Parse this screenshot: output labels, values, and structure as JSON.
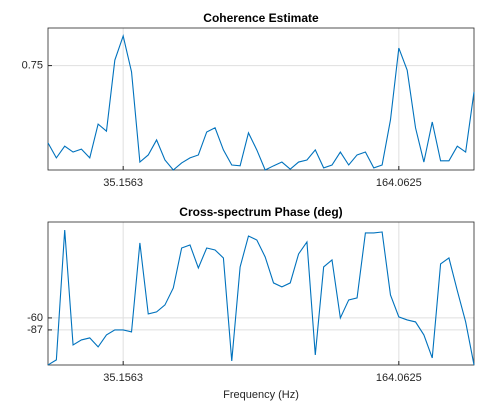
{
  "chart_data": [
    {
      "type": "line",
      "title": "Coherence Estimate",
      "x": [
        0,
        3.90625,
        7.8125,
        11.71875,
        15.625,
        19.53125,
        23.4375,
        27.34375,
        31.25,
        35.15625,
        39.0625,
        42.96875,
        46.875,
        50.78125,
        54.6875,
        58.59375,
        62.5,
        66.40625,
        70.3125,
        74.21875,
        78.125,
        82.03125,
        85.9375,
        89.84375,
        93.75,
        97.65625,
        101.5625,
        105.46875,
        109.375,
        113.28125,
        117.1875,
        121.09375,
        125,
        128.90625,
        132.8125,
        136.71875,
        140.625,
        144.53125,
        148.4375,
        152.34375,
        156.25,
        160.15625,
        164.0625,
        167.96875,
        171.875,
        175.78125,
        179.6875,
        183.59375,
        187.5,
        191.40625,
        195.3125,
        199.21875
      ],
      "values": [
        0.565,
        0.529,
        0.557,
        0.543,
        0.55,
        0.529,
        0.61,
        0.593,
        0.763,
        0.821,
        0.735,
        0.519,
        0.536,
        0.572,
        0.524,
        0.5,
        0.517,
        0.529,
        0.536,
        0.591,
        0.601,
        0.548,
        0.512,
        0.51,
        0.589,
        0.548,
        0.5,
        0.51,
        0.519,
        0.502,
        0.519,
        0.524,
        0.548,
        0.505,
        0.512,
        0.543,
        0.512,
        0.536,
        0.543,
        0.505,
        0.512,
        0.62,
        0.792,
        0.739,
        0.601,
        0.519,
        0.615,
        0.522,
        0.522,
        0.557,
        0.543,
        0.687
      ],
      "color": "#0072bd",
      "xlim": [
        0,
        199.21875
      ],
      "xticks": [
        35.1563,
        164.0625
      ],
      "ylim": [
        0.5,
        0.84
      ],
      "yticks": [
        0.75
      ],
      "grid": true
    },
    {
      "type": "line",
      "title": "Cross-spectrum Phase (deg)",
      "xlabel": "Frequency (Hz)",
      "x": [
        0,
        3.90625,
        7.8125,
        11.71875,
        15.625,
        19.53125,
        23.4375,
        27.34375,
        31.25,
        35.15625,
        39.0625,
        42.96875,
        46.875,
        50.78125,
        54.6875,
        58.59375,
        62.5,
        66.40625,
        70.3125,
        74.21875,
        78.125,
        82.03125,
        85.9375,
        89.84375,
        93.75,
        97.65625,
        101.5625,
        105.46875,
        109.375,
        113.28125,
        117.1875,
        121.09375,
        125,
        128.90625,
        132.8125,
        136.71875,
        140.625,
        144.53125,
        148.4375,
        152.34375,
        156.25,
        160.15625,
        164.0625,
        167.96875,
        171.875,
        175.78125,
        179.6875,
        183.59375,
        187.5,
        191.40625,
        195.3125,
        199.21875
      ],
      "values": [
        -165.8,
        -154.5,
        138,
        -120.8,
        -109.5,
        -105,
        -125.3,
        -98.3,
        -87,
        -87,
        -91.5,
        108.8,
        -51,
        -46.5,
        -30.8,
        7.5,
        97.5,
        104.3,
        52.5,
        97.5,
        93,
        75,
        -156.8,
        54.8,
        124.5,
        115.5,
        77.3,
        18.8,
        9.8,
        18.8,
        84,
        111,
        -143.3,
        54.8,
        70.5,
        -60,
        -19.5,
        -15,
        131.3,
        131.3,
        133.5,
        -8.3,
        -57.8,
        -64.5,
        -69,
        -98.3,
        -150,
        61.5,
        75,
        1.5,
        -69,
        -165.8
      ],
      "color": "#0072bd",
      "xlim": [
        0,
        199.21875
      ],
      "xticks": [
        35.1563,
        164.0625
      ],
      "ylim": [
        -166,
        156
      ],
      "yticks": [
        -87,
        -60
      ],
      "grid": true
    }
  ]
}
